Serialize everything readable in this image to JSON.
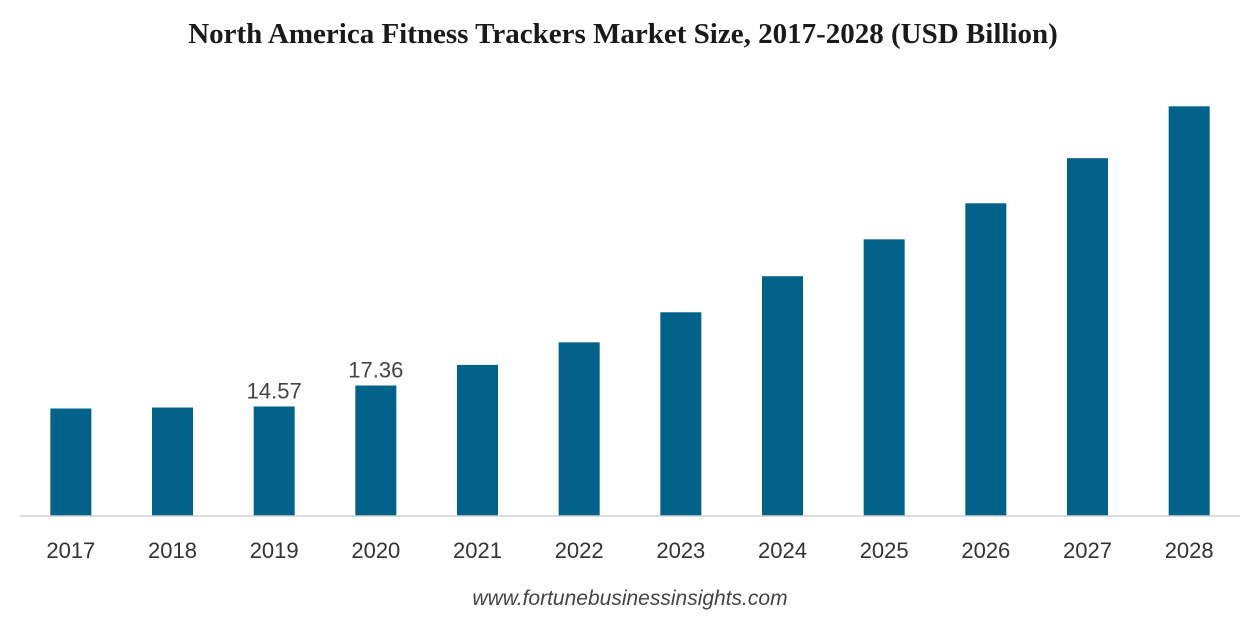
{
  "chart_data": {
    "type": "bar",
    "title": "North America Fitness Trackers Market Size, 2017-2028 (USD Billion)",
    "xlabel": "",
    "ylabel": "",
    "categories": [
      "2017",
      "2018",
      "2019",
      "2020",
      "2021",
      "2022",
      "2023",
      "2024",
      "2025",
      "2026",
      "2027",
      "2028"
    ],
    "values": [
      14.3,
      14.43,
      14.57,
      17.36,
      20.1,
      23.1,
      27.1,
      31.9,
      36.8,
      41.6,
      47.6,
      54.5
    ],
    "data_labels": [
      "",
      "",
      "14.57",
      "17.36",
      "",
      "",
      "",
      "",
      "",
      "",
      "",
      ""
    ],
    "ylim": [
      0,
      58
    ],
    "bar_color": "#03628a",
    "grid": false,
    "legend": "none"
  },
  "source": "www.fortunebusinessinsights.com"
}
